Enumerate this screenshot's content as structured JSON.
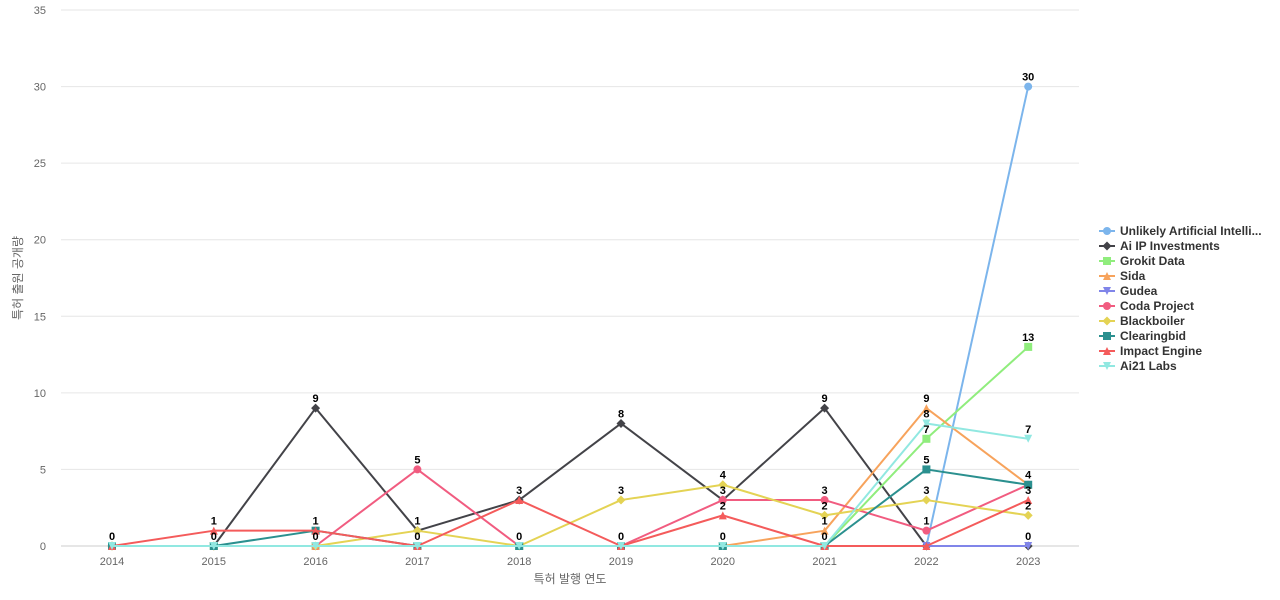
{
  "chart_data": {
    "type": "line",
    "title": "",
    "xlabel": "특허 발행 연도",
    "ylabel": "특허 출원 공개량",
    "x": [
      "2014",
      "2015",
      "2016",
      "2017",
      "2018",
      "2019",
      "2020",
      "2021",
      "2022",
      "2023"
    ],
    "ylim": [
      0,
      35
    ],
    "yticks": [
      0,
      5,
      10,
      15,
      20,
      25,
      30,
      35
    ],
    "grid": true,
    "legend_position": "right",
    "series": [
      {
        "name": "Unlikely Artificial Intelli...",
        "color": "#7cb5ec",
        "marker": "circle",
        "values": [
          0,
          0,
          0,
          0,
          0,
          0,
          0,
          0,
          0,
          30
        ],
        "labels": [
          false,
          false,
          false,
          false,
          false,
          false,
          false,
          false,
          false,
          true
        ]
      },
      {
        "name": "Ai IP Investments",
        "color": "#434348",
        "marker": "diamond",
        "values": [
          0,
          0,
          9,
          1,
          3,
          8,
          3,
          9,
          0,
          0
        ],
        "labels": [
          false,
          false,
          true,
          true,
          false,
          true,
          false,
          true,
          false,
          false
        ]
      },
      {
        "name": "Grokit Data",
        "color": "#90ed7d",
        "marker": "square",
        "values": [
          0,
          0,
          0,
          0,
          0,
          0,
          0,
          0,
          7,
          13
        ],
        "labels": [
          false,
          false,
          false,
          false,
          false,
          false,
          false,
          false,
          true,
          true
        ]
      },
      {
        "name": "Sida",
        "color": "#f7a35c",
        "marker": "triangle",
        "values": [
          0,
          0,
          0,
          0,
          0,
          0,
          0,
          1,
          9,
          4
        ],
        "labels": [
          false,
          false,
          false,
          false,
          false,
          false,
          false,
          true,
          true,
          false
        ]
      },
      {
        "name": "Gudea",
        "color": "#8085e9",
        "marker": "triangle-down",
        "values": [
          0,
          0,
          0,
          0,
          0,
          0,
          0,
          0,
          0,
          0
        ],
        "labels": [
          false,
          false,
          false,
          false,
          false,
          false,
          false,
          false,
          false,
          true
        ]
      },
      {
        "name": "Coda Project",
        "color": "#f15c80",
        "marker": "circle",
        "values": [
          0,
          0,
          0,
          5,
          0,
          0,
          3,
          3,
          1,
          4
        ],
        "labels": [
          false,
          false,
          false,
          true,
          false,
          false,
          true,
          true,
          true,
          true
        ]
      },
      {
        "name": "Blackboiler",
        "color": "#e4d354",
        "marker": "diamond",
        "values": [
          0,
          0,
          0,
          1,
          0,
          3,
          4,
          2,
          3,
          2
        ],
        "labels": [
          false,
          false,
          false,
          false,
          false,
          true,
          true,
          true,
          true,
          true
        ]
      },
      {
        "name": "Clearingbid",
        "color": "#2b908f",
        "marker": "square",
        "values": [
          0,
          0,
          1,
          0,
          0,
          0,
          0,
          0,
          5,
          4
        ],
        "labels": [
          false,
          false,
          false,
          false,
          false,
          false,
          false,
          false,
          true,
          false
        ]
      },
      {
        "name": "Impact Engine",
        "color": "#f45b5b",
        "marker": "triangle",
        "values": [
          0,
          1,
          1,
          0,
          3,
          0,
          2,
          0,
          0,
          3
        ],
        "labels": [
          false,
          true,
          true,
          false,
          true,
          false,
          true,
          false,
          false,
          true
        ]
      },
      {
        "name": "Ai21 Labs",
        "color": "#91e8e1",
        "marker": "triangle-down",
        "values": [
          0,
          0,
          0,
          0,
          0,
          0,
          0,
          0,
          8,
          7
        ],
        "labels": [
          true,
          true,
          true,
          true,
          true,
          true,
          true,
          true,
          true,
          true
        ]
      }
    ]
  }
}
